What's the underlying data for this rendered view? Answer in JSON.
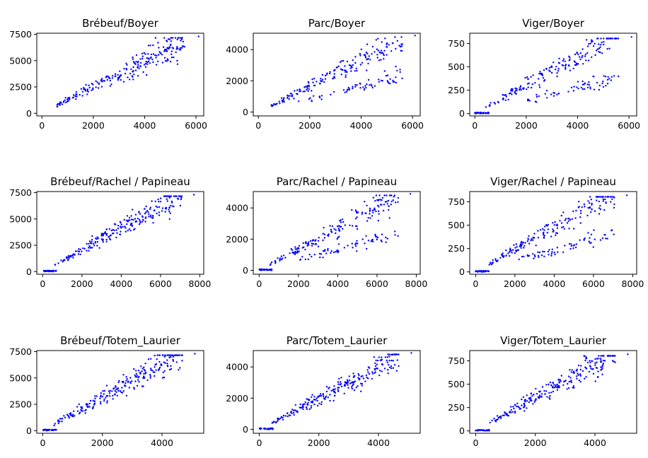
{
  "chart_data": [
    {
      "type": "scatter",
      "title": "Brébeuf/Boyer",
      "xlim": [
        -200,
        6300
      ],
      "ylim": [
        -250,
        7600
      ],
      "xticks": [
        0,
        2000,
        4000,
        6000
      ],
      "xtick_labels": [
        "0",
        "2000",
        "4000",
        "6000"
      ],
      "yticks": [
        0,
        2500,
        5000,
        7500
      ],
      "ytick_labels": [
        "0",
        "2500",
        "5000",
        "7500"
      ],
      "marker_color": "#0000ff",
      "x_max": 6100,
      "slope": 1.25,
      "y_max": 7300,
      "zero_cluster": false,
      "n": 240,
      "second_slope": null
    },
    {
      "type": "scatter",
      "title": "Parc/Boyer",
      "xlim": [
        -200,
        6300
      ],
      "ylim": [
        -250,
        5050
      ],
      "xticks": [
        0,
        2000,
        4000,
        6000
      ],
      "xtick_labels": [
        "0",
        "2000",
        "4000",
        "6000"
      ],
      "yticks": [
        0,
        2000,
        4000
      ],
      "ytick_labels": [
        "0",
        "2000",
        "4000"
      ],
      "marker_color": "#0000ff",
      "x_max": 6100,
      "slope": 0.82,
      "y_max": 4900,
      "zero_cluster": false,
      "n": 240,
      "second_slope": 0.42
    },
    {
      "type": "scatter",
      "title": "Viger/Boyer",
      "xlim": [
        -200,
        6300
      ],
      "ylim": [
        -25,
        860
      ],
      "xticks": [
        0,
        2000,
        4000,
        6000
      ],
      "xtick_labels": [
        "0",
        "2000",
        "4000",
        "6000"
      ],
      "yticks": [
        0,
        250,
        500,
        750
      ],
      "ytick_labels": [
        "0",
        "250",
        "500",
        "750"
      ],
      "marker_color": "#0000ff",
      "x_max": 6100,
      "slope": 0.155,
      "y_max": 820,
      "zero_cluster": true,
      "n": 240,
      "second_slope": 0.07
    },
    {
      "type": "scatter",
      "title": "Brébeuf/Rachel / Papineau",
      "xlim": [
        -300,
        8200
      ],
      "ylim": [
        -250,
        7600
      ],
      "xticks": [
        0,
        2000,
        4000,
        6000,
        8000
      ],
      "xtick_labels": [
        "0",
        "2000",
        "4000",
        "6000",
        "8000"
      ],
      "yticks": [
        0,
        2500,
        5000,
        7500
      ],
      "ytick_labels": [
        "0",
        "2500",
        "5000",
        "7500"
      ],
      "marker_color": "#0000ff",
      "x_max": 7700,
      "slope": 1.05,
      "y_max": 7300,
      "zero_cluster": true,
      "n": 240,
      "second_slope": null
    },
    {
      "type": "scatter",
      "title": "Parc/Rachel / Papineau",
      "xlim": [
        -300,
        8200
      ],
      "ylim": [
        -250,
        5050
      ],
      "xticks": [
        0,
        2000,
        4000,
        6000,
        8000
      ],
      "xtick_labels": [
        "0",
        "2000",
        "4000",
        "6000",
        "8000"
      ],
      "yticks": [
        0,
        2000,
        4000
      ],
      "ytick_labels": [
        "0",
        "2000",
        "4000"
      ],
      "marker_color": "#0000ff",
      "x_max": 7700,
      "slope": 0.68,
      "y_max": 4900,
      "zero_cluster": true,
      "n": 240,
      "second_slope": 0.34
    },
    {
      "type": "scatter",
      "title": "Viger/Rachel / Papineau",
      "xlim": [
        -300,
        8200
      ],
      "ylim": [
        -25,
        860
      ],
      "xticks": [
        0,
        2000,
        4000,
        6000,
        8000
      ],
      "xtick_labels": [
        "0",
        "2000",
        "4000",
        "6000",
        "8000"
      ],
      "yticks": [
        0,
        250,
        500,
        750
      ],
      "ytick_labels": [
        "0",
        "250",
        "500",
        "750"
      ],
      "marker_color": "#0000ff",
      "x_max": 7700,
      "slope": 0.12,
      "y_max": 820,
      "zero_cluster": true,
      "n": 240,
      "second_slope": 0.06
    },
    {
      "type": "scatter",
      "title": "Brébeuf/Totem_Laurier",
      "xlim": [
        -200,
        5400
      ],
      "ylim": [
        -250,
        7600
      ],
      "xticks": [
        0,
        2000,
        4000
      ],
      "xtick_labels": [
        "0",
        "2000",
        "4000"
      ],
      "yticks": [
        0,
        2500,
        5000,
        7500
      ],
      "ytick_labels": [
        "0",
        "2500",
        "5000",
        "7500"
      ],
      "marker_color": "#0000ff",
      "x_max": 5100,
      "slope": 1.6,
      "y_max": 7300,
      "zero_cluster": true,
      "n": 240,
      "second_slope": null
    },
    {
      "type": "scatter",
      "title": "Parc/Totem_Laurier",
      "xlim": [
        -200,
        5400
      ],
      "ylim": [
        -250,
        5050
      ],
      "xticks": [
        0,
        2000,
        4000
      ],
      "xtick_labels": [
        "0",
        "2000",
        "4000"
      ],
      "yticks": [
        0,
        2000,
        4000
      ],
      "ytick_labels": [
        "0",
        "2000",
        "4000"
      ],
      "marker_color": "#0000ff",
      "x_max": 5100,
      "slope": 1.0,
      "y_max": 4900,
      "zero_cluster": true,
      "n": 240,
      "second_slope": null
    },
    {
      "type": "scatter",
      "title": "Viger/Totem_Laurier",
      "xlim": [
        -200,
        5400
      ],
      "ylim": [
        -25,
        860
      ],
      "xticks": [
        0,
        2000,
        4000
      ],
      "xtick_labels": [
        "0",
        "2000",
        "4000"
      ],
      "yticks": [
        0,
        250,
        500,
        750
      ],
      "ytick_labels": [
        "0",
        "250",
        "500",
        "750"
      ],
      "marker_color": "#0000ff",
      "x_max": 5100,
      "slope": 0.18,
      "y_max": 820,
      "zero_cluster": true,
      "n": 240,
      "second_slope": null
    }
  ]
}
